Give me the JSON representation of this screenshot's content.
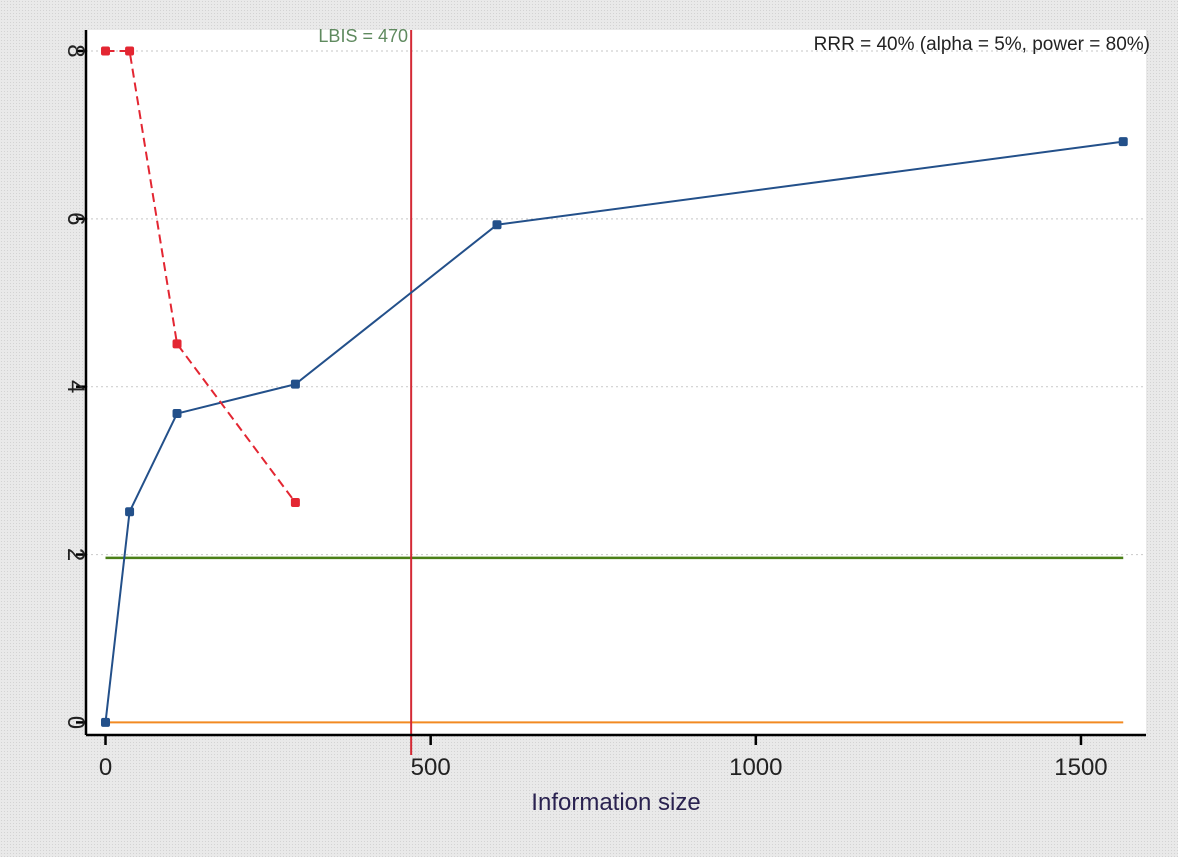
{
  "chart_data": {
    "type": "line",
    "xlabel": "Information size",
    "ylabel": "",
    "xlim": [
      -30,
      1600
    ],
    "ylim": [
      -0.15,
      8.25
    ],
    "xticks": [
      0,
      500,
      1000,
      1500
    ],
    "yticks": [
      0,
      2,
      4,
      6,
      8
    ],
    "grid": "horizontal dotted",
    "annotations": {
      "lbis_label": "LBIS = 470",
      "lbis_x": 470,
      "rrr_label": "RRR = 40% (alpha = 5%, power = 80%)"
    },
    "reference_lines": {
      "z_threshold": 1.96,
      "z_zero": 0
    },
    "series": [
      {
        "color": "#23508a",
        "style": "solid",
        "x": [
          0,
          37,
          110,
          292,
          602,
          1565
        ],
        "y": [
          0,
          2.51,
          3.68,
          4.03,
          5.93,
          6.92
        ]
      },
      {
        "color": "#e32632",
        "style": "dashed",
        "x": [
          0,
          37,
          110,
          292
        ],
        "y": [
          8,
          8,
          4.51,
          2.62
        ]
      }
    ],
    "colors": {
      "lbis_line": "#d42a35",
      "lbis_text": "#5f8a5f",
      "threshold_line": "#4a7f17",
      "zero_line": "#f28a22",
      "axis": "#000000",
      "grid": "#d0d0d0",
      "text": "#222222"
    }
  }
}
